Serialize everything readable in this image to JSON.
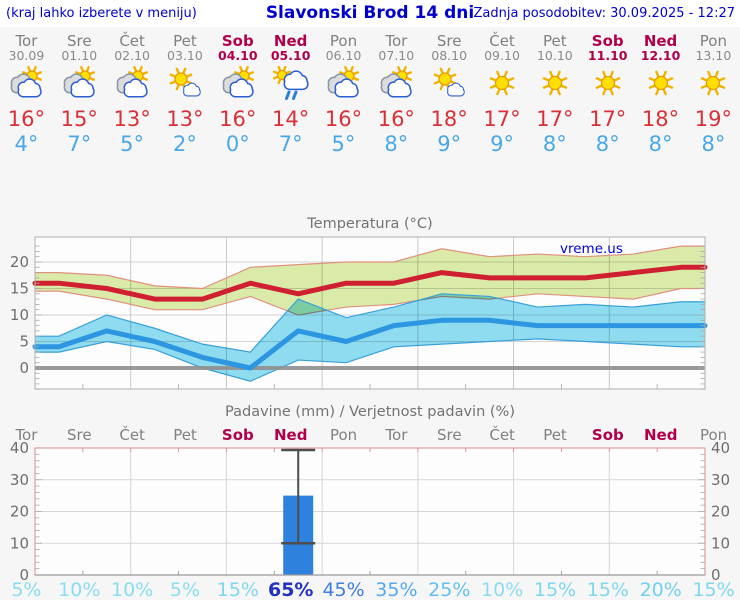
{
  "header": {
    "location_hint": "(kraj lahko izberete v meniju)",
    "title": "Slavonski Brod 14 dni",
    "updated": "Zadnja posodobitev: 30.09.2025 - 12:27"
  },
  "colors": {
    "link_blue": "#0000cc",
    "high_red": "#d93038",
    "low_blue": "#49a8e8",
    "weekend_crimson": "#b0004c",
    "day_gray": "#808080",
    "bar_blue": "#2e82dd",
    "max_band_fill": "#dcedaa",
    "min_band_fill": "#90def2"
  },
  "forecast": {
    "days": [
      {
        "name": "Tor",
        "date": "30.09",
        "weekend": false,
        "icon": "partly-cloudy-icon",
        "high": "16°",
        "low": "4°"
      },
      {
        "name": "Sre",
        "date": "01.10",
        "weekend": false,
        "icon": "partly-cloudy-icon",
        "high": "15°",
        "low": "7°"
      },
      {
        "name": "Čet",
        "date": "02.10",
        "weekend": false,
        "icon": "partly-cloudy-icon",
        "high": "13°",
        "low": "5°"
      },
      {
        "name": "Pet",
        "date": "03.10",
        "weekend": false,
        "icon": "mostly-sunny-icon",
        "high": "13°",
        "low": "2°"
      },
      {
        "name": "Sob",
        "date": "04.10",
        "weekend": true,
        "icon": "partly-cloudy-icon",
        "high": "16°",
        "low": "0°"
      },
      {
        "name": "Ned",
        "date": "05.10",
        "weekend": true,
        "icon": "rain-icon",
        "high": "14°",
        "low": "7°"
      },
      {
        "name": "Pon",
        "date": "06.10",
        "weekend": false,
        "icon": "partly-cloudy-icon",
        "high": "16°",
        "low": "5°"
      },
      {
        "name": "Tor",
        "date": "07.10",
        "weekend": false,
        "icon": "partly-cloudy-icon",
        "high": "16°",
        "low": "8°"
      },
      {
        "name": "Sre",
        "date": "08.10",
        "weekend": false,
        "icon": "mostly-sunny-icon",
        "high": "18°",
        "low": "9°"
      },
      {
        "name": "Čet",
        "date": "09.10",
        "weekend": false,
        "icon": "sunny-icon",
        "high": "17°",
        "low": "9°"
      },
      {
        "name": "Pet",
        "date": "10.10",
        "weekend": false,
        "icon": "sunny-icon",
        "high": "17°",
        "low": "8°"
      },
      {
        "name": "Sob",
        "date": "11.10",
        "weekend": true,
        "icon": "sunny-icon",
        "high": "17°",
        "low": "8°"
      },
      {
        "name": "Ned",
        "date": "12.10",
        "weekend": true,
        "icon": "sunny-icon",
        "high": "18°",
        "low": "8°"
      },
      {
        "name": "Pon",
        "date": "13.10",
        "weekend": false,
        "icon": "sunny-icon",
        "high": "19°",
        "low": "8°"
      }
    ]
  },
  "chart_data": [
    {
      "type": "line",
      "title": "Temperatura (°C)",
      "watermark": "vreme.us",
      "categories": [
        "Tor 30.09",
        "Sre 01.10",
        "Čet 02.10",
        "Pet 03.10",
        "Sob 04.10",
        "Ned 05.10",
        "Pon 06.10",
        "Tor 07.10",
        "Sre 08.10",
        "Čet 09.10",
        "Pet 10.10",
        "Sob 11.10",
        "Ned 12.10",
        "Pon 13.10"
      ],
      "ylim": [
        -4.7,
        24.0
      ],
      "yticks": [
        0,
        5,
        10,
        15,
        20
      ],
      "grid": true,
      "zero_line": true,
      "series": [
        {
          "name": "max-temp-range",
          "kind": "band",
          "fill": "#dcedaa",
          "edge": "#e0907e",
          "upper": [
            18,
            17.5,
            15.5,
            15,
            19,
            19.5,
            20,
            20,
            22.5,
            21,
            21.5,
            21,
            21.5,
            23
          ],
          "lower": [
            14.5,
            13,
            11,
            11,
            13.5,
            10,
            11.5,
            12,
            13.5,
            13,
            14,
            13.5,
            13,
            15
          ]
        },
        {
          "name": "min-temp-range",
          "kind": "band",
          "fill": "#90def2",
          "edge": "#38a0d8",
          "upper": [
            6,
            10,
            7.5,
            4.5,
            3,
            13,
            9.5,
            11.5,
            14,
            13.5,
            11.5,
            12,
            11.5,
            12.5
          ],
          "lower": [
            3,
            5,
            3.5,
            0,
            -2.5,
            1.5,
            1,
            4,
            4.5,
            5,
            5.5,
            5,
            4.5,
            4
          ]
        },
        {
          "name": "max-temp",
          "kind": "line",
          "color": "#ce2030",
          "values": [
            16,
            15,
            13,
            13,
            16,
            14,
            16,
            16,
            18,
            17,
            17,
            17,
            18,
            19
          ]
        },
        {
          "name": "min-temp",
          "kind": "line",
          "color": "#2d96e0",
          "values": [
            4,
            7,
            5,
            2,
            0,
            7,
            5,
            8,
            9,
            9,
            8,
            8,
            8,
            8
          ]
        }
      ]
    },
    {
      "type": "bar",
      "title": "Padavine (mm) / Verjetnost padavin (%)",
      "categories": [
        {
          "label": "Tor",
          "weekend": false
        },
        {
          "label": "Sre",
          "weekend": false
        },
        {
          "label": "Čet",
          "weekend": false
        },
        {
          "label": "Pet",
          "weekend": false
        },
        {
          "label": "Sob",
          "weekend": true
        },
        {
          "label": "Ned",
          "weekend": true
        },
        {
          "label": "Pon",
          "weekend": false
        },
        {
          "label": "Tor",
          "weekend": false
        },
        {
          "label": "Sre",
          "weekend": false
        },
        {
          "label": "Čet",
          "weekend": false
        },
        {
          "label": "Pet",
          "weekend": false
        },
        {
          "label": "Sob",
          "weekend": true
        },
        {
          "label": "Ned",
          "weekend": true
        },
        {
          "label": "Pon",
          "weekend": false
        }
      ],
      "values": [
        0,
        0,
        0,
        0,
        0,
        25,
        0,
        0,
        0,
        0,
        0,
        0,
        0,
        0
      ],
      "bar_color": "#2e82dd",
      "whisker": {
        "index": 5,
        "low": 10,
        "high": 40
      },
      "ylim": [
        0,
        40
      ],
      "yticks": [
        0,
        10,
        20,
        30,
        40
      ],
      "grid": true,
      "probabilities": [
        {
          "label": "5%",
          "color": "#8adcf2",
          "emphasis": false
        },
        {
          "label": "10%",
          "color": "#8adcf2",
          "emphasis": false
        },
        {
          "label": "10%",
          "color": "#8adcf2",
          "emphasis": false
        },
        {
          "label": "5%",
          "color": "#8adcf2",
          "emphasis": false
        },
        {
          "label": "15%",
          "color": "#7ed7f0",
          "emphasis": false
        },
        {
          "label": "65%",
          "color": "#2133bd",
          "emphasis": true
        },
        {
          "label": "45%",
          "color": "#3f7de0",
          "emphasis": false
        },
        {
          "label": "35%",
          "color": "#54a8ec",
          "emphasis": false
        },
        {
          "label": "25%",
          "color": "#63c0ee",
          "emphasis": false
        },
        {
          "label": "10%",
          "color": "#8adcf2",
          "emphasis": false
        },
        {
          "label": "15%",
          "color": "#7ed7f0",
          "emphasis": false
        },
        {
          "label": "15%",
          "color": "#7ed7f0",
          "emphasis": false
        },
        {
          "label": "20%",
          "color": "#70d0ee",
          "emphasis": false
        },
        {
          "label": "15%",
          "color": "#7ed7f0",
          "emphasis": false
        }
      ]
    }
  ]
}
